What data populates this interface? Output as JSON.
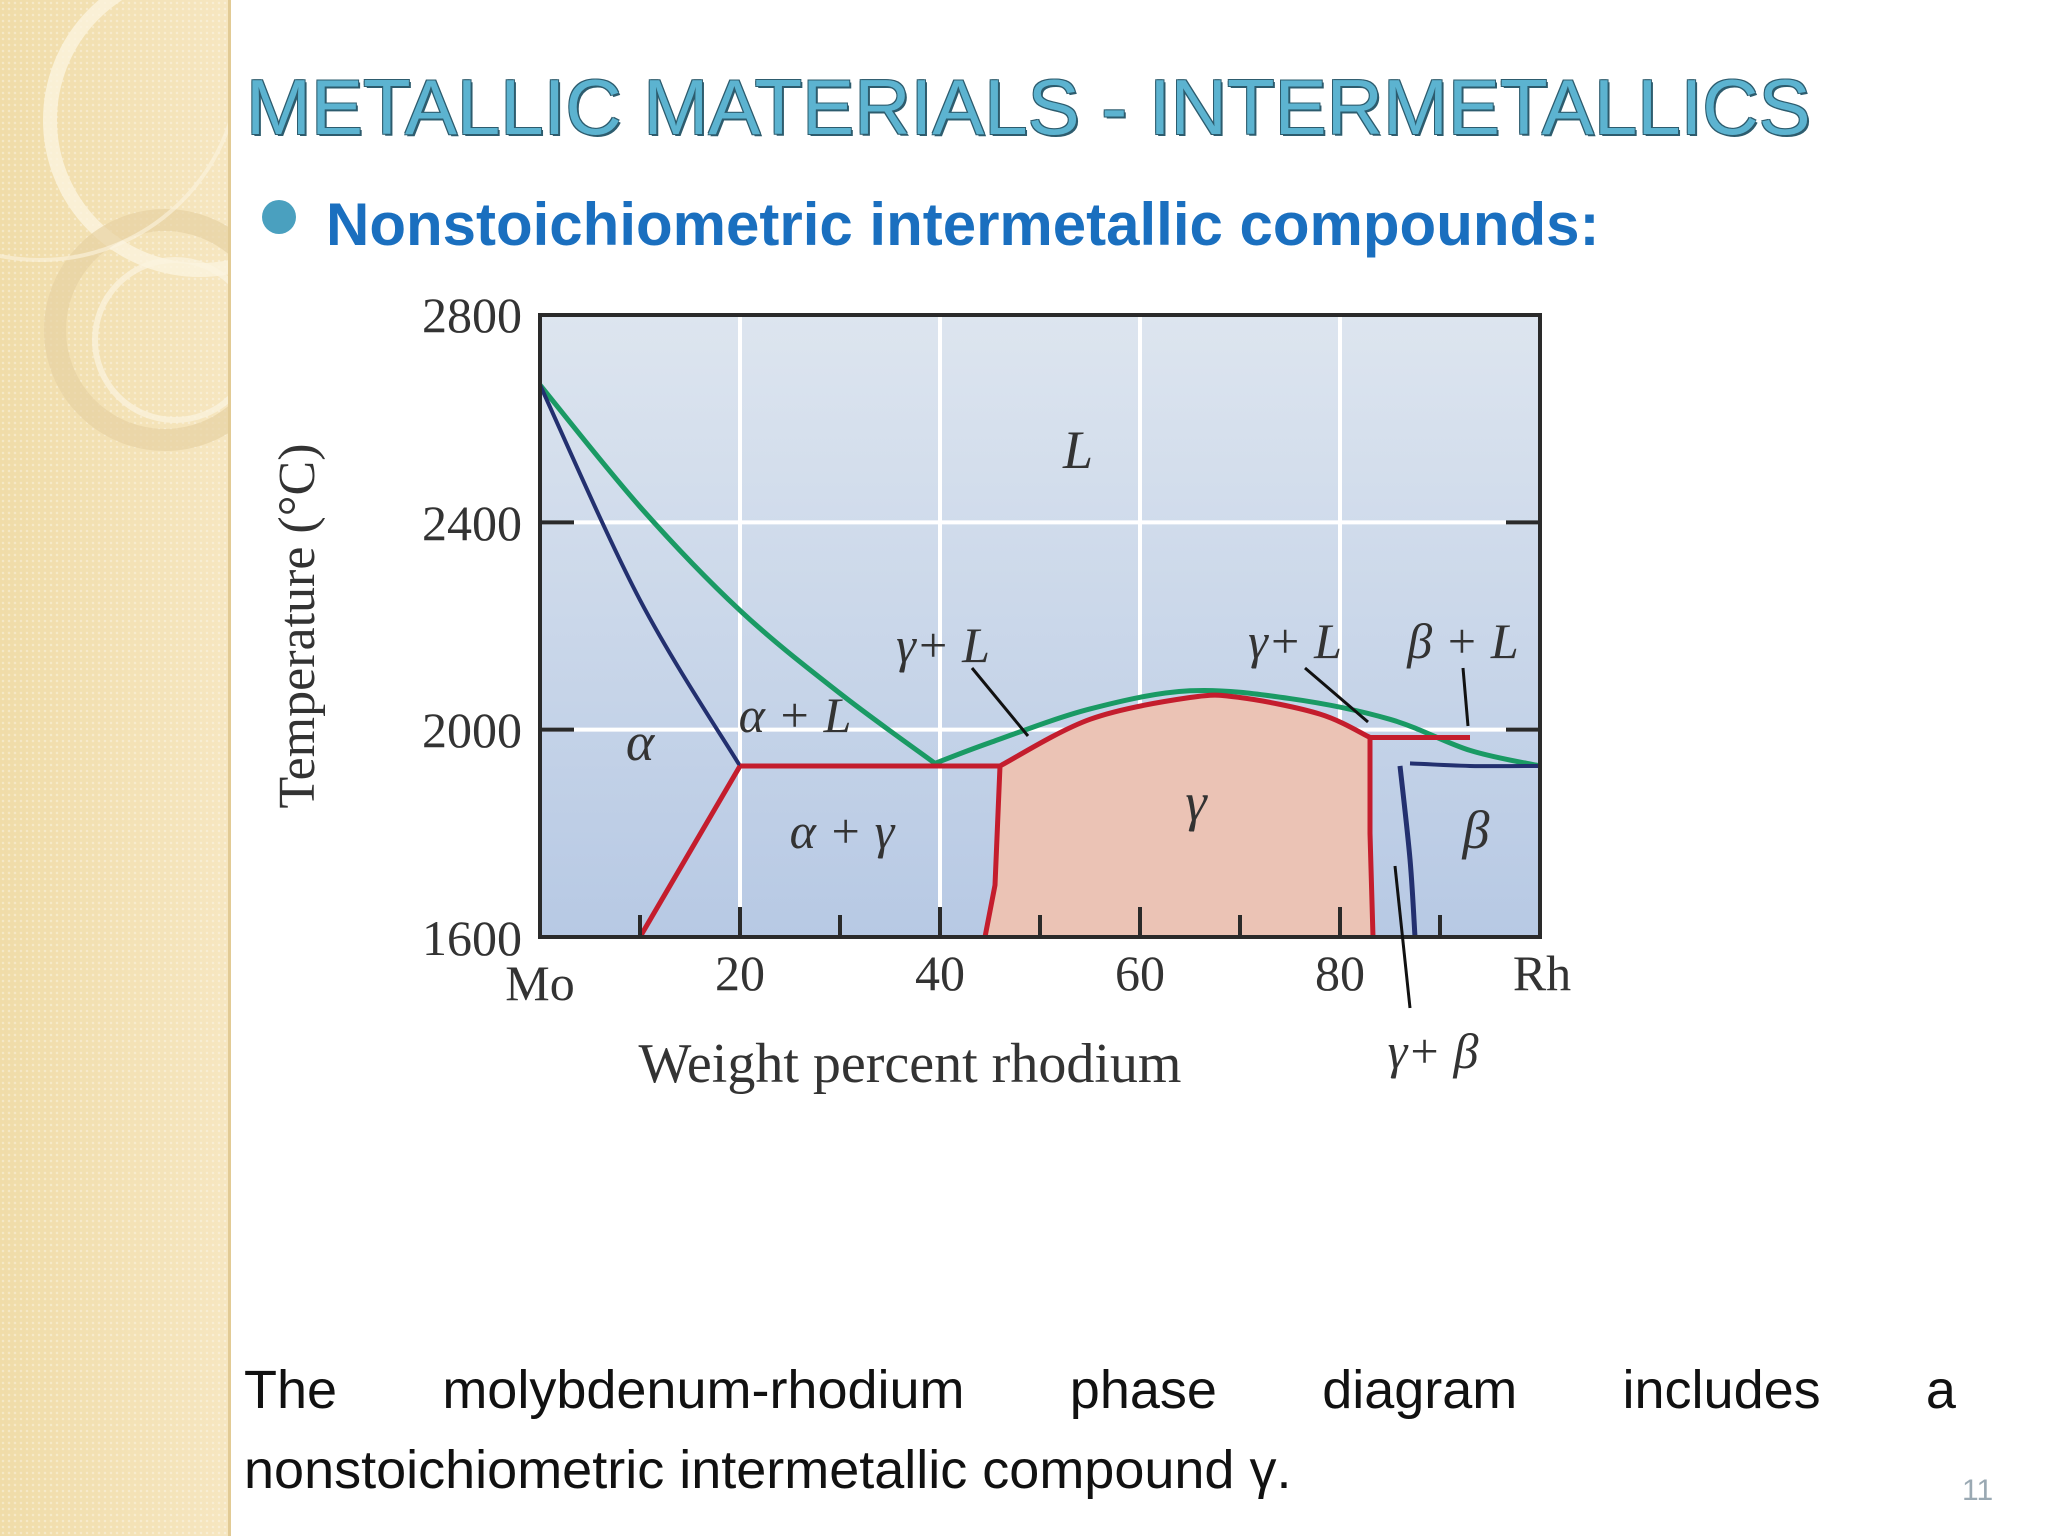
{
  "slide": {
    "title": "METALLIC MATERIALS - INTERMETALLICS",
    "bullet": "Nonstoichiometric intermetallic compounds:",
    "caption_words": [
      "The",
      "molybdenum-rhodium",
      "phase",
      "diagram",
      "includes",
      "a"
    ],
    "caption_line2": "nonstoichiometric intermetallic compound γ.",
    "page_number": "11"
  },
  "diagram": {
    "type": "phase-diagram",
    "y_axis": {
      "label": "Temperature (°C)",
      "ticks": [
        "1600",
        "2000",
        "2400",
        "2800"
      ],
      "range": [
        1600,
        2800
      ]
    },
    "x_axis": {
      "label": "Weight percent rhodium",
      "ticks": [
        "20",
        "40",
        "60",
        "80"
      ],
      "left_end": "Mo",
      "right_end": "Rh",
      "range": [
        0,
        100
      ]
    },
    "regions": {
      "L": "L",
      "alpha": "α",
      "alpha_L": "α + L",
      "alpha_gamma": "α + γ",
      "gamma": "γ",
      "gamma_L_left": "γ+ L",
      "gamma_L_right": "γ+ L",
      "beta_L": "β + L",
      "beta": "β",
      "gamma_beta": "γ+ β"
    },
    "colors": {
      "plot_background_top": "#dde5ef",
      "plot_background_bottom": "#b7c9e4",
      "gamma_fill": "#ebc3b5",
      "liquidus": "#1a9a64",
      "solidus_alpha": "#23306f",
      "gamma_boundary": "#c41d2d",
      "beta_boundary": "#23306f",
      "grid": "#ffffff"
    },
    "curves": {
      "liquidus": [
        [
          0,
          2665
        ],
        [
          10,
          2430
        ],
        [
          20,
          2230
        ],
        [
          30,
          2070
        ],
        [
          39.5,
          1935
        ],
        [
          45,
          1975
        ],
        [
          55,
          2040
        ],
        [
          65,
          2075
        ],
        [
          75,
          2060
        ],
        [
          85,
          2020
        ],
        [
          93,
          1960
        ],
        [
          100,
          1930
        ]
      ],
      "alpha_solidus": [
        [
          0,
          2665
        ],
        [
          10,
          2250
        ],
        [
          20,
          1930
        ]
      ],
      "alpha_solvus": [
        [
          10,
          1600
        ],
        [
          20,
          1930
        ]
      ],
      "alpha_gamma_eutectic": {
        "T": 1930,
        "from": 20,
        "to": 46
      },
      "gamma_left": [
        [
          44.5,
          1600
        ],
        [
          45.5,
          1700
        ],
        [
          46,
          1930
        ]
      ],
      "gamma_top": [
        [
          46,
          1930
        ],
        [
          55,
          2020
        ],
        [
          65,
          2062
        ],
        [
          70,
          2062
        ],
        [
          78,
          2030
        ],
        [
          83,
          1985
        ]
      ],
      "gamma_right": [
        [
          83,
          1985
        ],
        [
          83,
          1800
        ],
        [
          83.3,
          1600
        ]
      ],
      "peritectic": {
        "T": 1985,
        "from": 83,
        "to": 93
      },
      "beta_left": [
        [
          86,
          1930
        ],
        [
          87,
          1750
        ],
        [
          87.5,
          1600
        ]
      ],
      "beta_liquidus_low": [
        [
          87,
          1935
        ],
        [
          93,
          1930
        ],
        [
          100,
          1930
        ]
      ]
    }
  }
}
